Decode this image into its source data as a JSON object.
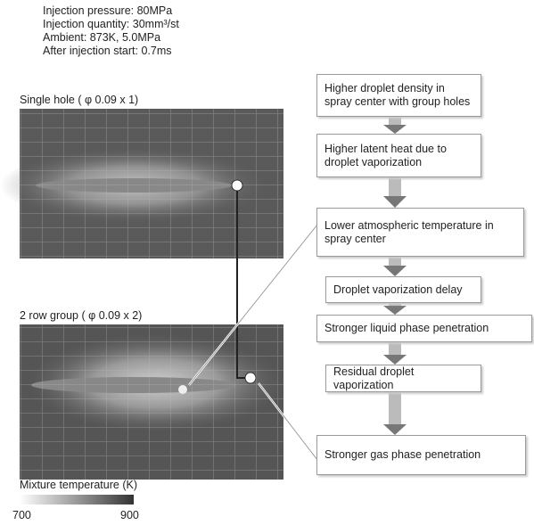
{
  "conditions": [
    "Injection pressure: 80MPa",
    "Injection quantity: 30mm³/st",
    "Ambient: 873K, 5.0MPa",
    "After injection start: 0.7ms"
  ],
  "panels": [
    {
      "label": "Single hole ( φ 0.09 x 1)"
    },
    {
      "label": "2 row group ( φ 0.09 x 2)"
    }
  ],
  "flow": [
    "Higher droplet density in spray center with group holes",
    "Higher latent heat due to droplet vaporization",
    "Lower atmospheric temperature in spray center",
    "Droplet vaporization delay",
    "Stronger liquid phase penetration",
    "Residual droplet vaporization",
    "Stronger gas phase penetration"
  ],
  "legend": {
    "title": "Mixture temperature (K)",
    "min": "700",
    "max": "900"
  }
}
